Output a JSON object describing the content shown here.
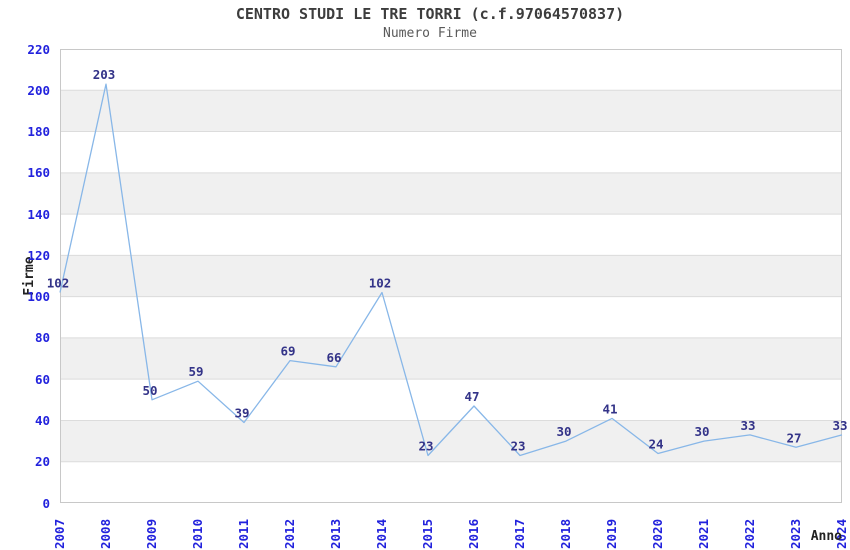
{
  "title": "CENTRO STUDI LE TRE TORRI (c.f.97064570837)",
  "subtitle": "Numero Firme",
  "colors": {
    "line": "#88b7e8",
    "data_label": "#333388",
    "tick_label": "#2222dd",
    "band_gray": "#f0f0f0",
    "gridline": "#dcdcdc",
    "plot_border": "#c8c8c8",
    "title_text": "#3d3d3d",
    "subtitle_text": "#5a5a5a",
    "axis_title_text": "#222222",
    "background": "#ffffff"
  },
  "chart_data": {
    "type": "line",
    "title": "CENTRO STUDI LE TRE TORRI (c.f.97064570837)",
    "subtitle": "Numero Firme",
    "xlabel": "Anno",
    "ylabel": "Firme",
    "categories": [
      "2007",
      "2008",
      "2009",
      "2010",
      "2011",
      "2012",
      "2013",
      "2014",
      "2015",
      "2016",
      "2017",
      "2018",
      "2019",
      "2020",
      "2021",
      "2022",
      "2023",
      "2024"
    ],
    "values": [
      102,
      203,
      50,
      59,
      39,
      69,
      66,
      102,
      23,
      47,
      23,
      30,
      41,
      24,
      30,
      33,
      27,
      33
    ],
    "ylim": [
      0,
      220
    ],
    "ytick_step": 20,
    "yticks": [
      0,
      20,
      40,
      60,
      80,
      100,
      120,
      140,
      160,
      180,
      200,
      220
    ],
    "grid": true,
    "alternating_bands": true,
    "legend": "none",
    "markers": false,
    "data_labels_visible": true
  }
}
